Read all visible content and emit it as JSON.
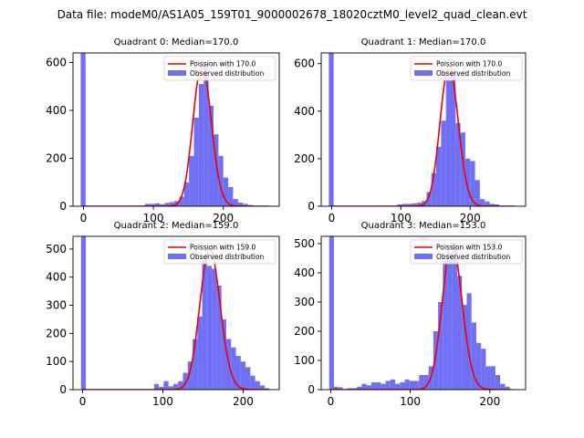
{
  "suptitle": "Data file: modeM0/AS1A05_159T01_9000002678_18020cztM0_level2_quad_clean.evt",
  "colors": {
    "hist": "#7070f5",
    "fit": "#ee0000",
    "axes": "#000000",
    "background": "#ffffff"
  },
  "chart_data": [
    {
      "type": "bar",
      "title": "Quadrant 0: Median=170.0",
      "median": 170.0,
      "xlim": [
        -15,
        280
      ],
      "ylim": [
        0,
        640
      ],
      "xticks": [
        0,
        100,
        200
      ],
      "yticks": [
        0,
        200,
        400,
        600
      ],
      "bin_width": 7,
      "legend": {
        "position": "top-right",
        "entries": [
          "Poission with 170.0",
          "Observed distribution"
        ]
      },
      "series": [
        {
          "name": "Observed distribution",
          "kind": "histogram",
          "bins": [
            [
              -4,
              640
            ],
            [
              88,
              10
            ],
            [
              95,
              10
            ],
            [
              102,
              12
            ],
            [
              109,
              8
            ],
            [
              116,
              14
            ],
            [
              123,
              17
            ],
            [
              130,
              22
            ],
            [
              137,
              40
            ],
            [
              144,
              100
            ],
            [
              151,
              210
            ],
            [
              158,
              370
            ],
            [
              165,
              510
            ],
            [
              172,
              600
            ],
            [
              179,
              420
            ],
            [
              186,
              300
            ],
            [
              193,
              210
            ],
            [
              200,
              120
            ],
            [
              207,
              80
            ],
            [
              214,
              30
            ],
            [
              221,
              15
            ],
            [
              228,
              10
            ],
            [
              235,
              5
            ]
          ]
        },
        {
          "name": "Poission with 170.0",
          "kind": "poisson",
          "mean": 170.0,
          "peak": 590,
          "x_range": [
            0,
            265
          ]
        }
      ]
    },
    {
      "type": "bar",
      "title": "Quadrant 1: Median=170.0",
      "median": 170.0,
      "xlim": [
        -15,
        280
      ],
      "ylim": [
        0,
        645
      ],
      "xticks": [
        0,
        100,
        200
      ],
      "yticks": [
        0,
        200,
        400,
        600
      ],
      "bin_width": 7,
      "legend": {
        "position": "top-right",
        "entries": [
          "Poission with 170.0",
          "Observed distribution"
        ]
      },
      "series": [
        {
          "name": "Observed distribution",
          "kind": "histogram",
          "bins": [
            [
              -4,
              645
            ],
            [
              95,
              8
            ],
            [
              102,
              10
            ],
            [
              109,
              10
            ],
            [
              116,
              12
            ],
            [
              123,
              15
            ],
            [
              130,
              22
            ],
            [
              137,
              60
            ],
            [
              144,
              140
            ],
            [
              151,
              250
            ],
            [
              158,
              360
            ],
            [
              165,
              530
            ],
            [
              172,
              580
            ],
            [
              179,
              350
            ],
            [
              186,
              310
            ],
            [
              193,
              200
            ],
            [
              200,
              190
            ],
            [
              207,
              110
            ],
            [
              214,
              30
            ],
            [
              221,
              20
            ],
            [
              228,
              10
            ],
            [
              235,
              8
            ]
          ]
        },
        {
          "name": "Poission with 170.0",
          "kind": "poisson",
          "mean": 170.0,
          "peak": 590,
          "x_range": [
            0,
            265
          ]
        }
      ]
    },
    {
      "type": "bar",
      "title": "Quadrant 2: Median=159.0",
      "median": 159.0,
      "xlim": [
        -12,
        245
      ],
      "ylim": [
        0,
        545
      ],
      "xticks": [
        0,
        100,
        200
      ],
      "yticks": [
        0,
        100,
        200,
        300,
        400,
        500
      ],
      "bin_width": 6,
      "legend": {
        "position": "top-right",
        "entries": [
          "Poission with 159.0",
          "Observed distribution"
        ]
      },
      "series": [
        {
          "name": "Observed distribution",
          "kind": "histogram",
          "bins": [
            [
              -2,
              545
            ],
            [
              89,
              20
            ],
            [
              95,
              10
            ],
            [
              101,
              30
            ],
            [
              107,
              12
            ],
            [
              113,
              20
            ],
            [
              119,
              30
            ],
            [
              125,
              60
            ],
            [
              131,
              100
            ],
            [
              137,
              180
            ],
            [
              143,
              260
            ],
            [
              149,
              460
            ],
            [
              155,
              440
            ],
            [
              161,
              430
            ],
            [
              167,
              370
            ],
            [
              173,
              250
            ],
            [
              179,
              180
            ],
            [
              185,
              150
            ],
            [
              191,
              120
            ],
            [
              197,
              100
            ],
            [
              203,
              80
            ],
            [
              209,
              50
            ],
            [
              215,
              30
            ],
            [
              221,
              15
            ],
            [
              227,
              5
            ]
          ]
        },
        {
          "name": "Poission with 159.0",
          "kind": "poisson",
          "mean": 159.0,
          "peak": 500,
          "x_range": [
            0,
            232
          ]
        }
      ]
    },
    {
      "type": "bar",
      "title": "Quadrant 3: Median=153.0",
      "median": 153.0,
      "xlim": [
        -12,
        245
      ],
      "ylim": [
        0,
        525
      ],
      "xticks": [
        0,
        100,
        200
      ],
      "yticks": [
        0,
        100,
        200,
        300,
        400,
        500
      ],
      "bin_width": 6,
      "legend": {
        "position": "top-right",
        "entries": [
          "Poission with 153.0",
          "Observed distribution"
        ]
      },
      "series": [
        {
          "name": "Observed distribution",
          "kind": "histogram",
          "bins": [
            [
              -2,
              525
            ],
            [
              3,
              10
            ],
            [
              9,
              8
            ],
            [
              21,
              5
            ],
            [
              27,
              5
            ],
            [
              33,
              10
            ],
            [
              39,
              20
            ],
            [
              45,
              15
            ],
            [
              51,
              25
            ],
            [
              57,
              25
            ],
            [
              63,
              20
            ],
            [
              69,
              30
            ],
            [
              75,
              35
            ],
            [
              81,
              20
            ],
            [
              87,
              25
            ],
            [
              93,
              35
            ],
            [
              99,
              30
            ],
            [
              105,
              30
            ],
            [
              111,
              50
            ],
            [
              117,
              50
            ],
            [
              123,
              80
            ],
            [
              129,
              200
            ],
            [
              135,
              300
            ],
            [
              141,
              440
            ],
            [
              147,
              470
            ],
            [
              153,
              500
            ],
            [
              159,
              390
            ],
            [
              165,
              290
            ],
            [
              171,
              330
            ],
            [
              177,
              230
            ],
            [
              183,
              160
            ],
            [
              189,
              140
            ],
            [
              195,
              80
            ],
            [
              201,
              80
            ],
            [
              207,
              50
            ],
            [
              213,
              20
            ],
            [
              219,
              10
            ]
          ]
        },
        {
          "name": "Poission with 153.0",
          "kind": "poisson",
          "mean": 153.0,
          "peak": 500,
          "x_range": [
            0,
            228
          ]
        }
      ]
    }
  ]
}
